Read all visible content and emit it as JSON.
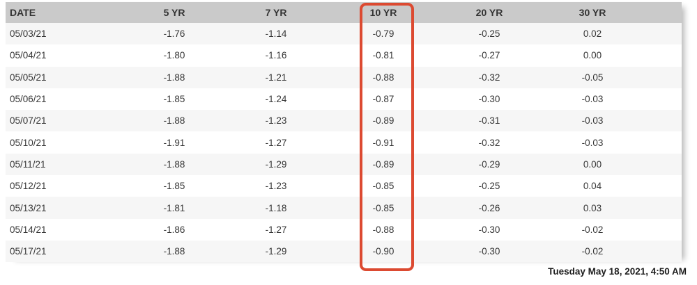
{
  "table": {
    "headers": [
      "DATE",
      "5 YR",
      "7 YR",
      "10 YR",
      "20 YR",
      "30 YR"
    ],
    "rows": [
      {
        "date": "05/03/21",
        "values": [
          "-1.76",
          "-1.14",
          "-0.79",
          "-0.25",
          "0.02"
        ]
      },
      {
        "date": "05/04/21",
        "values": [
          "-1.80",
          "-1.16",
          "-0.81",
          "-0.27",
          "0.00"
        ]
      },
      {
        "date": "05/05/21",
        "values": [
          "-1.88",
          "-1.21",
          "-0.88",
          "-0.32",
          "-0.05"
        ]
      },
      {
        "date": "05/06/21",
        "values": [
          "-1.85",
          "-1.24",
          "-0.87",
          "-0.30",
          "-0.03"
        ]
      },
      {
        "date": "05/07/21",
        "values": [
          "-1.88",
          "-1.23",
          "-0.89",
          "-0.31",
          "-0.03"
        ]
      },
      {
        "date": "05/10/21",
        "values": [
          "-1.91",
          "-1.27",
          "-0.91",
          "-0.32",
          "-0.03"
        ]
      },
      {
        "date": "05/11/21",
        "values": [
          "-1.88",
          "-1.29",
          "-0.89",
          "-0.29",
          "0.00"
        ]
      },
      {
        "date": "05/12/21",
        "values": [
          "-1.85",
          "-1.23",
          "-0.85",
          "-0.25",
          "0.04"
        ]
      },
      {
        "date": "05/13/21",
        "values": [
          "-1.81",
          "-1.18",
          "-0.85",
          "-0.26",
          "0.03"
        ]
      },
      {
        "date": "05/14/21",
        "values": [
          "-1.86",
          "-1.27",
          "-0.88",
          "-0.30",
          "-0.02"
        ]
      },
      {
        "date": "05/17/21",
        "values": [
          "-1.88",
          "-1.29",
          "-0.90",
          "-0.30",
          "-0.02"
        ]
      }
    ]
  },
  "highlight": {
    "column": "10 YR",
    "color": "#dc4a31"
  },
  "footer": {
    "timestamp": "Tuesday May 18, 2021, 4:50 AM"
  },
  "colors": {
    "header_bg": "#cacaca",
    "row_alt_bg": "#f6f6f6",
    "row_bg": "#ffffff",
    "text": "#363636"
  }
}
